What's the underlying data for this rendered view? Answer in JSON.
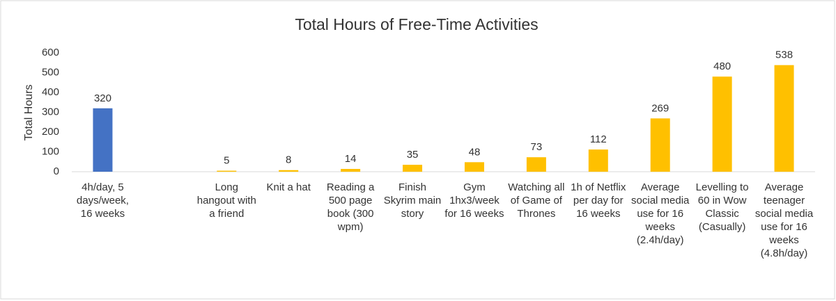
{
  "chart_data": {
    "type": "bar",
    "title": "Total Hours of Free-Time Activities",
    "y_label": "Total Hours",
    "categories": [
      "4h/day, 5 days/week, 16 weeks",
      null,
      "Long hangout with a friend",
      "Knit a hat",
      "Reading a 500 page book (300 wpm)",
      "Finish Skyrim main story",
      "Gym 1hx3/week for 16 weeks",
      "Watching all of Game of Thrones",
      "1h of Netflix per day for 16 weeks",
      "Average social media use for 16 weeks (2.4h/day)",
      "Levelling to 60 in Wow Classic (Casually)",
      "Average teenager social media use for 16 weeks (4.8h/day)"
    ],
    "values": [
      320,
      null,
      5,
      8,
      14,
      35,
      48,
      73,
      112,
      269,
      480,
      538
    ],
    "colors": [
      "#4472c4",
      null,
      "#ffc000",
      "#ffc000",
      "#ffc000",
      "#ffc000",
      "#ffc000",
      "#ffc000",
      "#ffc000",
      "#ffc000",
      "#ffc000",
      "#ffc000"
    ],
    "ylim": [
      0,
      600
    ],
    "yticks": [
      0,
      100,
      200,
      300,
      400,
      500,
      600
    ],
    "grid": false
  }
}
